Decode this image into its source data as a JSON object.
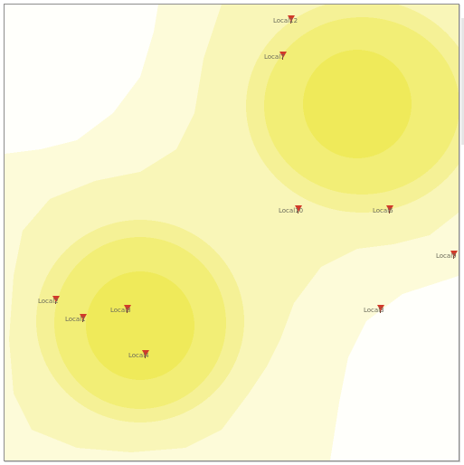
{
  "map": {
    "colors": {
      "background": "#fffffb",
      "density_levels": [
        "#fdfbd9",
        "#f9f6b8",
        "#f5f196",
        "#f2ee76",
        "#efea5a"
      ],
      "marker": "#d13a2a"
    },
    "hotspots": [
      {
        "name": "north-east-cluster"
      },
      {
        "name": "south-west-cluster"
      }
    ],
    "locations": [
      {
        "id": "local12",
        "label": "Local12"
      },
      {
        "id": "local7",
        "label": "Local7"
      },
      {
        "id": "local10",
        "label": "Local10"
      },
      {
        "id": "local6",
        "label": "Local6"
      },
      {
        "id": "local9",
        "label": "Local9"
      },
      {
        "id": "local2",
        "label": "Local2"
      },
      {
        "id": "local1",
        "label": "Local1"
      },
      {
        "id": "local8",
        "label": "Local8"
      },
      {
        "id": "local3",
        "label": "Local3"
      },
      {
        "id": "local4",
        "label": "Local4"
      }
    ]
  }
}
